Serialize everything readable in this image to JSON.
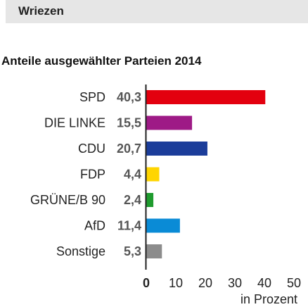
{
  "header": {
    "title": "Wriezen"
  },
  "chart_data": {
    "type": "bar",
    "orientation": "horizontal",
    "title": "Anteile ausgewählter Parteien 2014",
    "xlabel": "in Prozent",
    "ylabel": "",
    "xlim": [
      0,
      50
    ],
    "xticks": [
      0,
      10,
      20,
      30,
      40,
      50
    ],
    "categories": [
      "SPD",
      "DIE LINKE",
      "CDU",
      "FDP",
      "GRÜNE/B 90",
      "AfD",
      "Sonstige"
    ],
    "values": [
      40.3,
      15.5,
      20.7,
      4.4,
      2.4,
      11.4,
      5.3
    ],
    "value_labels": [
      "40,3",
      "15,5",
      "20,7",
      "4,4",
      "2,4",
      "11,4",
      "5,3"
    ],
    "colors": [
      "#e3000f",
      "#9e1a86",
      "#1b3d9a",
      "#ffd500",
      "#1f9b2e",
      "#0a8bd6",
      "#8c8c8c"
    ],
    "grid": false,
    "legend": "none"
  }
}
